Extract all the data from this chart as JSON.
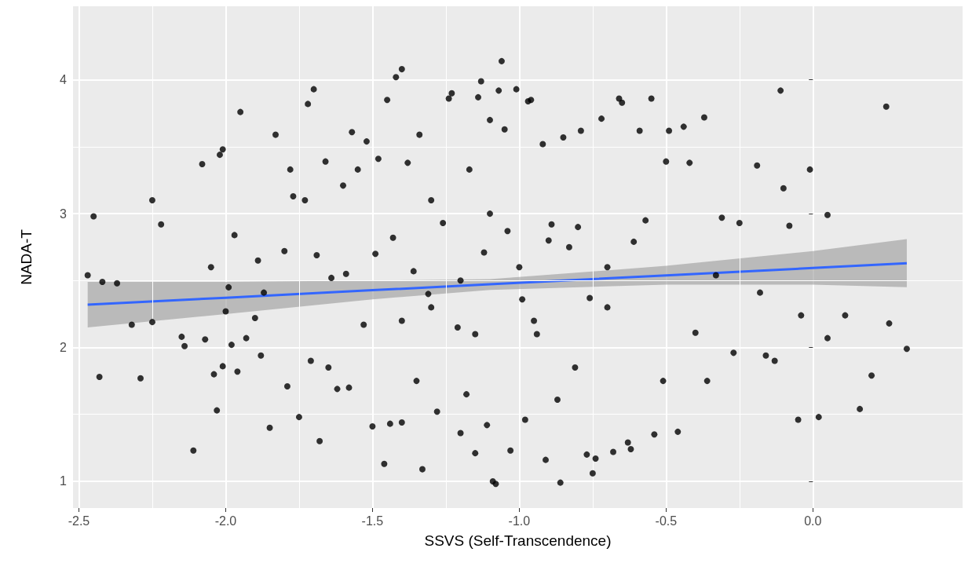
{
  "chart_data": {
    "type": "scatter",
    "xlabel": "SSVS (Self-Transcendence)",
    "ylabel": "NADA-T",
    "xlim": [
      -2.52,
      0.51
    ],
    "ylim": [
      0.8,
      4.55
    ],
    "xticks": [
      {
        "value": -2.5,
        "label": "-2.5"
      },
      {
        "value": -2,
        "label": "-2.0"
      },
      {
        "value": -1.5,
        "label": "-1.5"
      },
      {
        "value": -1,
        "label": "-1.0"
      },
      {
        "value": -0.5,
        "label": "-0.5"
      },
      {
        "value": 0,
        "label": "0.0"
      }
    ],
    "yticks": [
      1,
      2,
      3,
      4
    ],
    "grid": true,
    "marker": "circle",
    "series": [
      {
        "type": "scatter",
        "color": "#000000",
        "x": [
          -2.47,
          -2.45,
          -2.43,
          -2.42,
          -2.37,
          -2.32,
          -2.29,
          -2.25,
          -2.25,
          -2.22,
          -2.15,
          -2.14,
          -2.11,
          -2.08,
          -2.07,
          -2.05,
          -2.04,
          -2.03,
          -2.02,
          -2.01,
          -2.01,
          -2.0,
          -1.99,
          -1.98,
          -1.97,
          -1.96,
          -1.95,
          -1.93,
          -1.9,
          -1.89,
          -1.88,
          -1.87,
          -1.85,
          -1.83,
          -1.8,
          -1.79,
          -1.78,
          -1.77,
          -1.75,
          -1.73,
          -1.72,
          -1.71,
          -1.7,
          -1.69,
          -1.68,
          -1.66,
          -1.65,
          -1.64,
          -1.62,
          -1.6,
          -1.59,
          -1.58,
          -1.57,
          -1.55,
          -1.53,
          -1.52,
          -1.5,
          -1.49,
          -1.48,
          -1.46,
          -1.45,
          -1.44,
          -1.43,
          -1.42,
          -1.4,
          -1.4,
          -1.38,
          -1.36,
          -1.35,
          -1.34,
          -1.33,
          -1.31,
          -1.3,
          -1.28,
          -1.26,
          -1.24,
          -1.23,
          -1.21,
          -1.2,
          -1.18,
          -1.17,
          -1.15,
          -1.14,
          -1.13,
          -1.12,
          -1.11,
          -1.1,
          -1.09,
          -1.08,
          -1.07,
          -1.06,
          -1.05,
          -1.04,
          -1.03,
          -1.01,
          -0.99,
          -0.98,
          -0.97,
          -0.96,
          -0.94,
          -0.92,
          -0.91,
          -0.89,
          -0.87,
          -0.86,
          -0.85,
          -0.83,
          -0.81,
          -0.79,
          -0.77,
          -0.76,
          -0.75,
          -0.74,
          -0.72,
          -0.7,
          -0.68,
          -0.66,
          -0.65,
          -0.63,
          -0.62,
          -0.61,
          -0.59,
          -0.57,
          -0.55,
          -0.54,
          -0.51,
          -0.5,
          -0.49,
          -0.46,
          -0.44,
          -0.42,
          -0.4,
          -0.37,
          -0.36,
          -0.33,
          -0.31,
          -0.27,
          -0.25,
          -0.19,
          -0.18,
          -0.16,
          -0.13,
          -0.11,
          -0.1,
          -0.08,
          -0.05,
          -0.04,
          -0.01,
          0.02,
          0.05,
          0.05,
          0.11,
          0.16,
          0.2,
          0.25,
          0.26,
          0.32,
          -1.2,
          -1.0,
          -0.9,
          -1.3,
          -0.8,
          -1.1,
          -1.4,
          -0.7,
          -1.15,
          -0.95
        ],
        "values": [
          2.54,
          2.98,
          1.78,
          2.49,
          2.48,
          2.17,
          1.77,
          3.1,
          2.19,
          2.92,
          2.08,
          2.01,
          1.23,
          3.37,
          2.06,
          2.6,
          1.8,
          1.53,
          3.44,
          3.48,
          1.86,
          2.27,
          2.45,
          2.02,
          2.84,
          1.82,
          3.76,
          2.07,
          2.22,
          2.65,
          1.94,
          2.41,
          1.4,
          3.59,
          2.72,
          1.71,
          3.33,
          3.13,
          1.48,
          3.1,
          3.82,
          1.9,
          3.93,
          2.69,
          1.3,
          3.39,
          1.85,
          2.52,
          1.69,
          3.21,
          2.55,
          1.7,
          3.61,
          3.33,
          2.17,
          3.54,
          1.41,
          2.7,
          3.41,
          1.13,
          3.85,
          1.43,
          2.82,
          4.02,
          4.08,
          1.44,
          3.38,
          2.57,
          1.75,
          3.59,
          1.09,
          2.4,
          3.1,
          1.52,
          2.93,
          3.86,
          3.9,
          2.15,
          1.36,
          1.65,
          3.33,
          1.21,
          3.87,
          3.99,
          2.71,
          1.42,
          3.7,
          1.0,
          0.98,
          3.92,
          4.14,
          3.63,
          2.87,
          1.23,
          3.93,
          2.36,
          1.46,
          3.84,
          3.85,
          2.1,
          3.52,
          1.16,
          2.92,
          1.61,
          0.99,
          3.57,
          2.75,
          1.85,
          3.62,
          1.2,
          2.37,
          1.06,
          1.17,
          3.71,
          2.6,
          1.22,
          3.86,
          3.83,
          1.29,
          1.24,
          2.79,
          3.62,
          2.95,
          3.86,
          1.35,
          1.75,
          3.39,
          3.62,
          1.37,
          3.65,
          3.38,
          2.11,
          3.72,
          1.75,
          2.54,
          2.97,
          1.96,
          2.93,
          3.36,
          2.41,
          1.94,
          1.9,
          3.92,
          3.19,
          2.91,
          1.46,
          2.24,
          3.33,
          1.48,
          2.99,
          2.07,
          2.24,
          1.54,
          1.79,
          3.8,
          2.18,
          1.99,
          2.5,
          2.6,
          2.8,
          2.3,
          2.9,
          3.0,
          2.2,
          2.3,
          2.1,
          2.2
        ]
      },
      {
        "type": "line",
        "color": "#3366ff",
        "marker": "none",
        "x": [
          -2.47,
          -2.0,
          -1.5,
          -1.1,
          -0.5,
          0.0,
          0.32
        ],
        "values": [
          2.32,
          2.372,
          2.428,
          2.472,
          2.539,
          2.594,
          2.63
        ],
        "lower": [
          2.15,
          2.25,
          2.36,
          2.43,
          2.47,
          2.47,
          2.45
        ],
        "upper": [
          2.49,
          2.49,
          2.5,
          2.51,
          2.61,
          2.72,
          2.81
        ]
      }
    ]
  }
}
